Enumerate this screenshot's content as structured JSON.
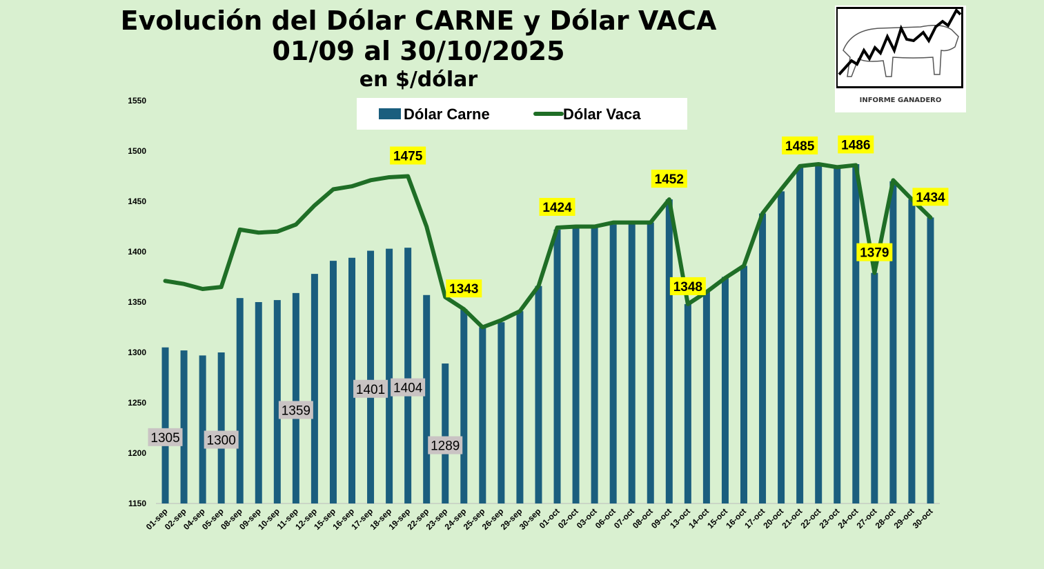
{
  "title_line1": "Evolución del Dólar CARNE y Dólar VACA",
  "title_line2": "01/09 al 30/10/2025",
  "title_line3": "en $/dólar",
  "logo_text": "INFORME GANADERO",
  "colors": {
    "background": "#d9f0d0",
    "bar": "#1a5e7e",
    "line": "#1f6e26",
    "line_label_bg": "#ffff00",
    "bar_label_bg": "#c9c3c3"
  },
  "chart_data": {
    "type": "bar",
    "categories": [
      "01-sep",
      "02-sep",
      "04-sep",
      "05-sep",
      "08-sep",
      "09-sep",
      "10-sep",
      "11-sep",
      "12-sep",
      "15-sep",
      "16-sep",
      "17-sep",
      "18-sep",
      "19-sep",
      "22-sep",
      "23-sep",
      "24-sep",
      "25-sep",
      "26-sep",
      "29-sep",
      "30-sep",
      "01-oct",
      "02-oct",
      "03-oct",
      "06-oct",
      "07-oct",
      "08-oct",
      "09-oct",
      "13-oct",
      "14-oct",
      "15-oct",
      "16-oct",
      "17-oct",
      "20-oct",
      "21-oct",
      "22-oct",
      "23-oct",
      "24-oct",
      "27-oct",
      "28-oct",
      "29-oct",
      "30-oct"
    ],
    "series": [
      {
        "name": "Dólar Carne",
        "kind": "bar",
        "values": [
          1305,
          1302,
          1297,
          1300,
          1354,
          1350,
          1352,
          1359,
          1378,
          1391,
          1394,
          1401,
          1403,
          1404,
          1357,
          1289,
          1343,
          1325,
          1330,
          1341,
          1366,
          1422,
          1425,
          1425,
          1427,
          1428,
          1429,
          1452,
          1348,
          1360,
          1375,
          1386,
          1438,
          1460,
          1484,
          1488,
          1485,
          1487,
          1379,
          1470,
          1452,
          1434
        ],
        "labels": [
          {
            "i": 0,
            "text": "1305"
          },
          {
            "i": 3,
            "text": "1300"
          },
          {
            "i": 7,
            "text": "1359"
          },
          {
            "i": 11,
            "text": "1401"
          },
          {
            "i": 13,
            "text": "1404"
          },
          {
            "i": 15,
            "text": "1289"
          }
        ]
      },
      {
        "name": "Dólar Vaca",
        "kind": "line",
        "values": [
          1371,
          1368,
          1363,
          1365,
          1422,
          1419,
          1420,
          1427,
          1446,
          1462,
          1465,
          1471,
          1474,
          1475,
          1425,
          1355,
          1343,
          1325,
          1332,
          1341,
          1366,
          1424,
          1425,
          1425,
          1429,
          1429,
          1429,
          1452,
          1348,
          1360,
          1374,
          1386,
          1438,
          1462,
          1485,
          1487,
          1484,
          1486,
          1379,
          1471,
          1452,
          1434
        ],
        "labels": [
          {
            "i": 13,
            "text": "1475"
          },
          {
            "i": 16,
            "text": "1343"
          },
          {
            "i": 21,
            "text": "1424"
          },
          {
            "i": 27,
            "text": "1452"
          },
          {
            "i": 28,
            "text": "1348"
          },
          {
            "i": 34,
            "text": "1485"
          },
          {
            "i": 37,
            "text": "1486"
          },
          {
            "i": 38,
            "text": "1379"
          },
          {
            "i": 41,
            "text": "1434"
          }
        ]
      }
    ],
    "ylim": [
      1150,
      1550
    ],
    "yticks": [
      1150,
      1200,
      1250,
      1300,
      1350,
      1400,
      1450,
      1500,
      1550
    ],
    "legend_position": "top-center",
    "grid": false
  }
}
